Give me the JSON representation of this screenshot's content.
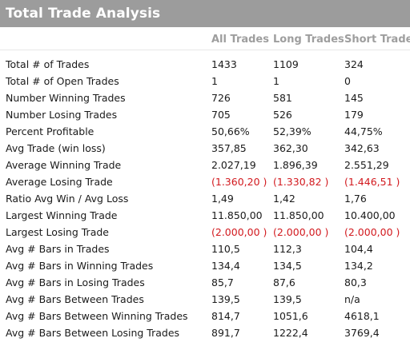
{
  "header": {
    "title": "Total Trade Analysis"
  },
  "columns": {
    "all": "All Trades",
    "long": "Long Trades",
    "short": "Short Trades"
  },
  "rows": [
    {
      "label": "Total # of Trades",
      "all": "1433",
      "long": "1109",
      "short": "324"
    },
    {
      "label": "Total # of Open Trades",
      "all": "1",
      "long": "1",
      "short": "0"
    },
    {
      "label": "Number Winning Trades",
      "all": "726",
      "long": "581",
      "short": "145"
    },
    {
      "label": "Number Losing Trades",
      "all": "705",
      "long": "526",
      "short": "179"
    },
    {
      "label": "Percent Profitable",
      "all": "50,66%",
      "long": "52,39%",
      "short": "44,75%"
    },
    {
      "label": "Avg Trade (win  loss)",
      "all": "357,85",
      "long": "362,30",
      "short": "342,63"
    },
    {
      "label": "Average Winning Trade",
      "all": "2.027,19",
      "long": "1.896,39",
      "short": "2.551,29"
    },
    {
      "label": "Average Losing Trade",
      "all": "(1.360,20 )",
      "long": "(1.330,82 )",
      "short": "(1.446,51 )"
    },
    {
      "label": "Ratio Avg Win / Avg Loss",
      "all": "1,49",
      "long": "1,42",
      "short": "1,76"
    },
    {
      "label": "Largest Winning Trade",
      "all": "11.850,00",
      "long": "11.850,00",
      "short": "10.400,00"
    },
    {
      "label": "Largest Losing Trade",
      "all": "(2.000,00 )",
      "long": "(2.000,00 )",
      "short": "(2.000,00 )"
    },
    {
      "label": "Avg # Bars in Trades",
      "all": "110,5",
      "long": "112,3",
      "short": "104,4"
    },
    {
      "label": "Avg # Bars in Winning Trades",
      "all": "134,4",
      "long": "134,5",
      "short": "134,2"
    },
    {
      "label": "Avg # Bars in Losing Trades",
      "all": "85,7",
      "long": "87,6",
      "short": "80,3"
    },
    {
      "label": "Avg # Bars Between Trades",
      "all": "139,5",
      "long": "139,5",
      "short": "n/a"
    },
    {
      "label": "Avg # Bars Between Winning Trades",
      "all": "814,7",
      "long": "1051,6",
      "short": "4618,1"
    },
    {
      "label": "Avg # Bars Between Losing Trades",
      "all": "891,7",
      "long": "1222,4",
      "short": "3769,4"
    }
  ],
  "colors": {
    "header_bg": "#9c9c9c",
    "column_header": "#9e9e9e",
    "negative": "#d2191e",
    "text": "#1a1a1a"
  }
}
